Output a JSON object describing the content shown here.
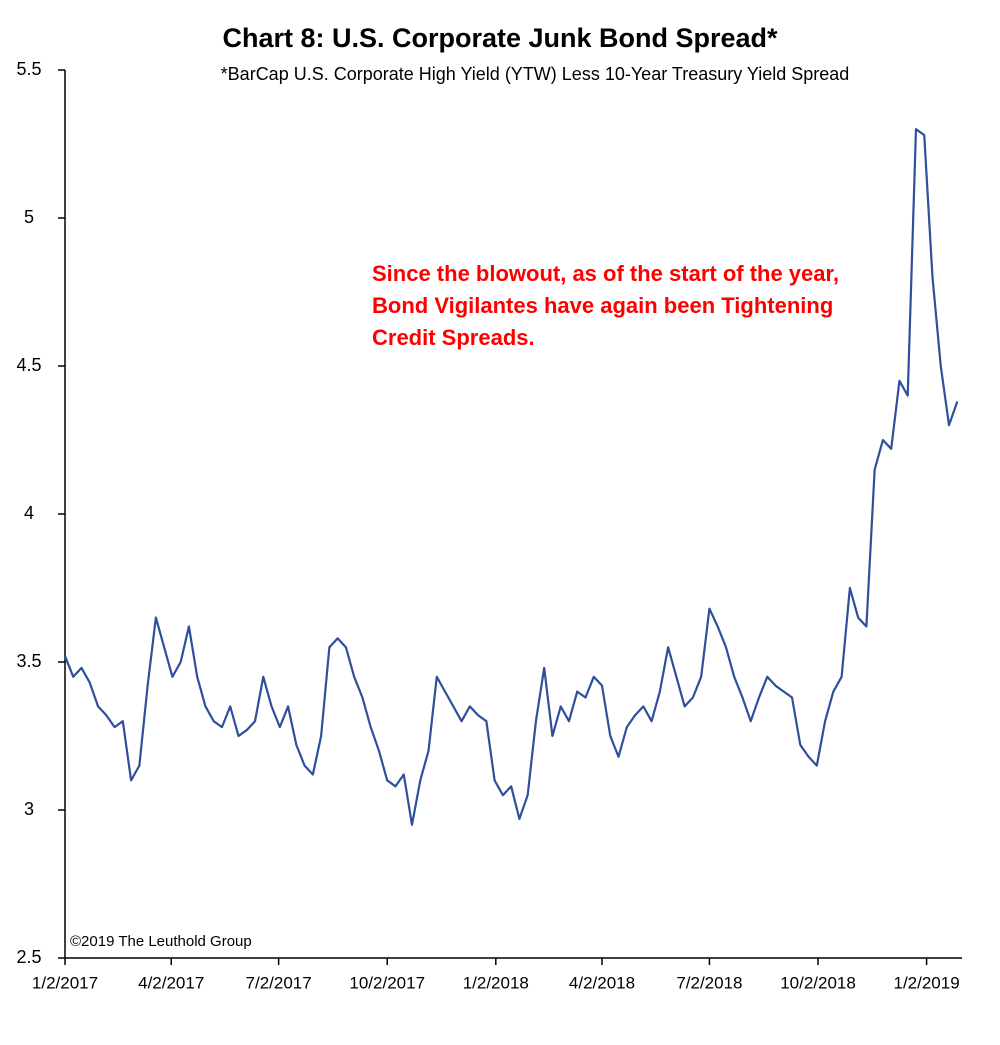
{
  "chart_data": {
    "type": "line",
    "title": "Chart 8: U.S. Corporate Junk Bond Spread*",
    "subtitle": "*BarCap U.S. Corporate High Yield (YTW) Less 10-Year Treasury Yield Spread",
    "annotation": "Since the blowout, as of the start of the year, Bond Vigilantes have again been Tightening Credit Spreads.",
    "source": "©2019 The Leuthold Group",
    "x": [
      "2017-01-02",
      "2017-01-09",
      "2017-01-16",
      "2017-01-23",
      "2017-01-30",
      "2017-02-06",
      "2017-02-13",
      "2017-02-20",
      "2017-02-27",
      "2017-03-06",
      "2017-03-13",
      "2017-03-20",
      "2017-03-27",
      "2017-04-03",
      "2017-04-10",
      "2017-04-17",
      "2017-04-24",
      "2017-05-01",
      "2017-05-08",
      "2017-05-15",
      "2017-05-22",
      "2017-05-29",
      "2017-06-05",
      "2017-06-12",
      "2017-06-19",
      "2017-06-26",
      "2017-07-03",
      "2017-07-10",
      "2017-07-17",
      "2017-07-24",
      "2017-07-31",
      "2017-08-07",
      "2017-08-14",
      "2017-08-21",
      "2017-08-28",
      "2017-09-04",
      "2017-09-11",
      "2017-09-18",
      "2017-09-25",
      "2017-10-02",
      "2017-10-09",
      "2017-10-16",
      "2017-10-23",
      "2017-10-30",
      "2017-11-06",
      "2017-11-13",
      "2017-11-20",
      "2017-11-27",
      "2017-12-04",
      "2017-12-11",
      "2017-12-18",
      "2017-12-25",
      "2018-01-01",
      "2018-01-08",
      "2018-01-15",
      "2018-01-22",
      "2018-01-29",
      "2018-02-05",
      "2018-02-12",
      "2018-02-19",
      "2018-02-26",
      "2018-03-05",
      "2018-03-12",
      "2018-03-19",
      "2018-03-26",
      "2018-04-02",
      "2018-04-09",
      "2018-04-16",
      "2018-04-23",
      "2018-04-30",
      "2018-05-07",
      "2018-05-14",
      "2018-05-21",
      "2018-05-28",
      "2018-06-04",
      "2018-06-11",
      "2018-06-18",
      "2018-06-25",
      "2018-07-02",
      "2018-07-09",
      "2018-07-16",
      "2018-07-23",
      "2018-07-30",
      "2018-08-06",
      "2018-08-13",
      "2018-08-20",
      "2018-08-27",
      "2018-09-03",
      "2018-09-10",
      "2018-09-17",
      "2018-09-24",
      "2018-10-01",
      "2018-10-08",
      "2018-10-15",
      "2018-10-22",
      "2018-10-29",
      "2018-11-05",
      "2018-11-12",
      "2018-11-19",
      "2018-11-26",
      "2018-12-03",
      "2018-12-10",
      "2018-12-17",
      "2018-12-24",
      "2018-12-31",
      "2019-01-07",
      "2019-01-14",
      "2019-01-21",
      "2019-01-28"
    ],
    "series": [
      {
        "name": "Spread",
        "color": "#2e4f9a",
        "values": [
          3.52,
          3.45,
          3.48,
          3.43,
          3.35,
          3.32,
          3.28,
          3.3,
          3.1,
          3.15,
          3.42,
          3.65,
          3.55,
          3.45,
          3.5,
          3.62,
          3.45,
          3.35,
          3.3,
          3.28,
          3.35,
          3.25,
          3.27,
          3.3,
          3.45,
          3.35,
          3.28,
          3.35,
          3.22,
          3.15,
          3.12,
          3.25,
          3.55,
          3.58,
          3.55,
          3.45,
          3.38,
          3.28,
          3.2,
          3.1,
          3.08,
          3.12,
          2.95,
          3.1,
          3.2,
          3.45,
          3.4,
          3.35,
          3.3,
          3.35,
          3.32,
          3.3,
          3.1,
          3.05,
          3.08,
          2.97,
          3.05,
          3.3,
          3.48,
          3.25,
          3.35,
          3.3,
          3.4,
          3.38,
          3.45,
          3.42,
          3.25,
          3.18,
          3.28,
          3.32,
          3.35,
          3.3,
          3.4,
          3.55,
          3.45,
          3.35,
          3.38,
          3.45,
          3.68,
          3.62,
          3.55,
          3.45,
          3.38,
          3.3,
          3.38,
          3.45,
          3.42,
          3.4,
          3.38,
          3.22,
          3.18,
          3.15,
          3.3,
          3.4,
          3.45,
          3.75,
          3.65,
          3.62,
          4.15,
          4.25,
          4.22,
          4.45,
          4.4,
          5.3,
          5.28,
          4.8,
          4.5,
          4.3,
          4.38
        ]
      }
    ],
    "xlim": [
      "2017-01-02",
      "2019-02-01"
    ],
    "xticks": [
      {
        "value": "2017-01-02",
        "label": "1/2/2017"
      },
      {
        "value": "2017-04-02",
        "label": "4/2/2017"
      },
      {
        "value": "2017-07-02",
        "label": "7/2/2017"
      },
      {
        "value": "2017-10-02",
        "label": "10/2/2017"
      },
      {
        "value": "2018-01-02",
        "label": "1/2/2018"
      },
      {
        "value": "2018-04-02",
        "label": "4/2/2018"
      },
      {
        "value": "2018-07-02",
        "label": "7/2/2018"
      },
      {
        "value": "2018-10-02",
        "label": "10/2/2018"
      },
      {
        "value": "2019-01-02",
        "label": "1/2/2019"
      }
    ],
    "ylim": [
      2.5,
      5.5
    ],
    "yticks": [
      2.5,
      3,
      3.5,
      4,
      4.5,
      5,
      5.5
    ],
    "grid": false
  }
}
